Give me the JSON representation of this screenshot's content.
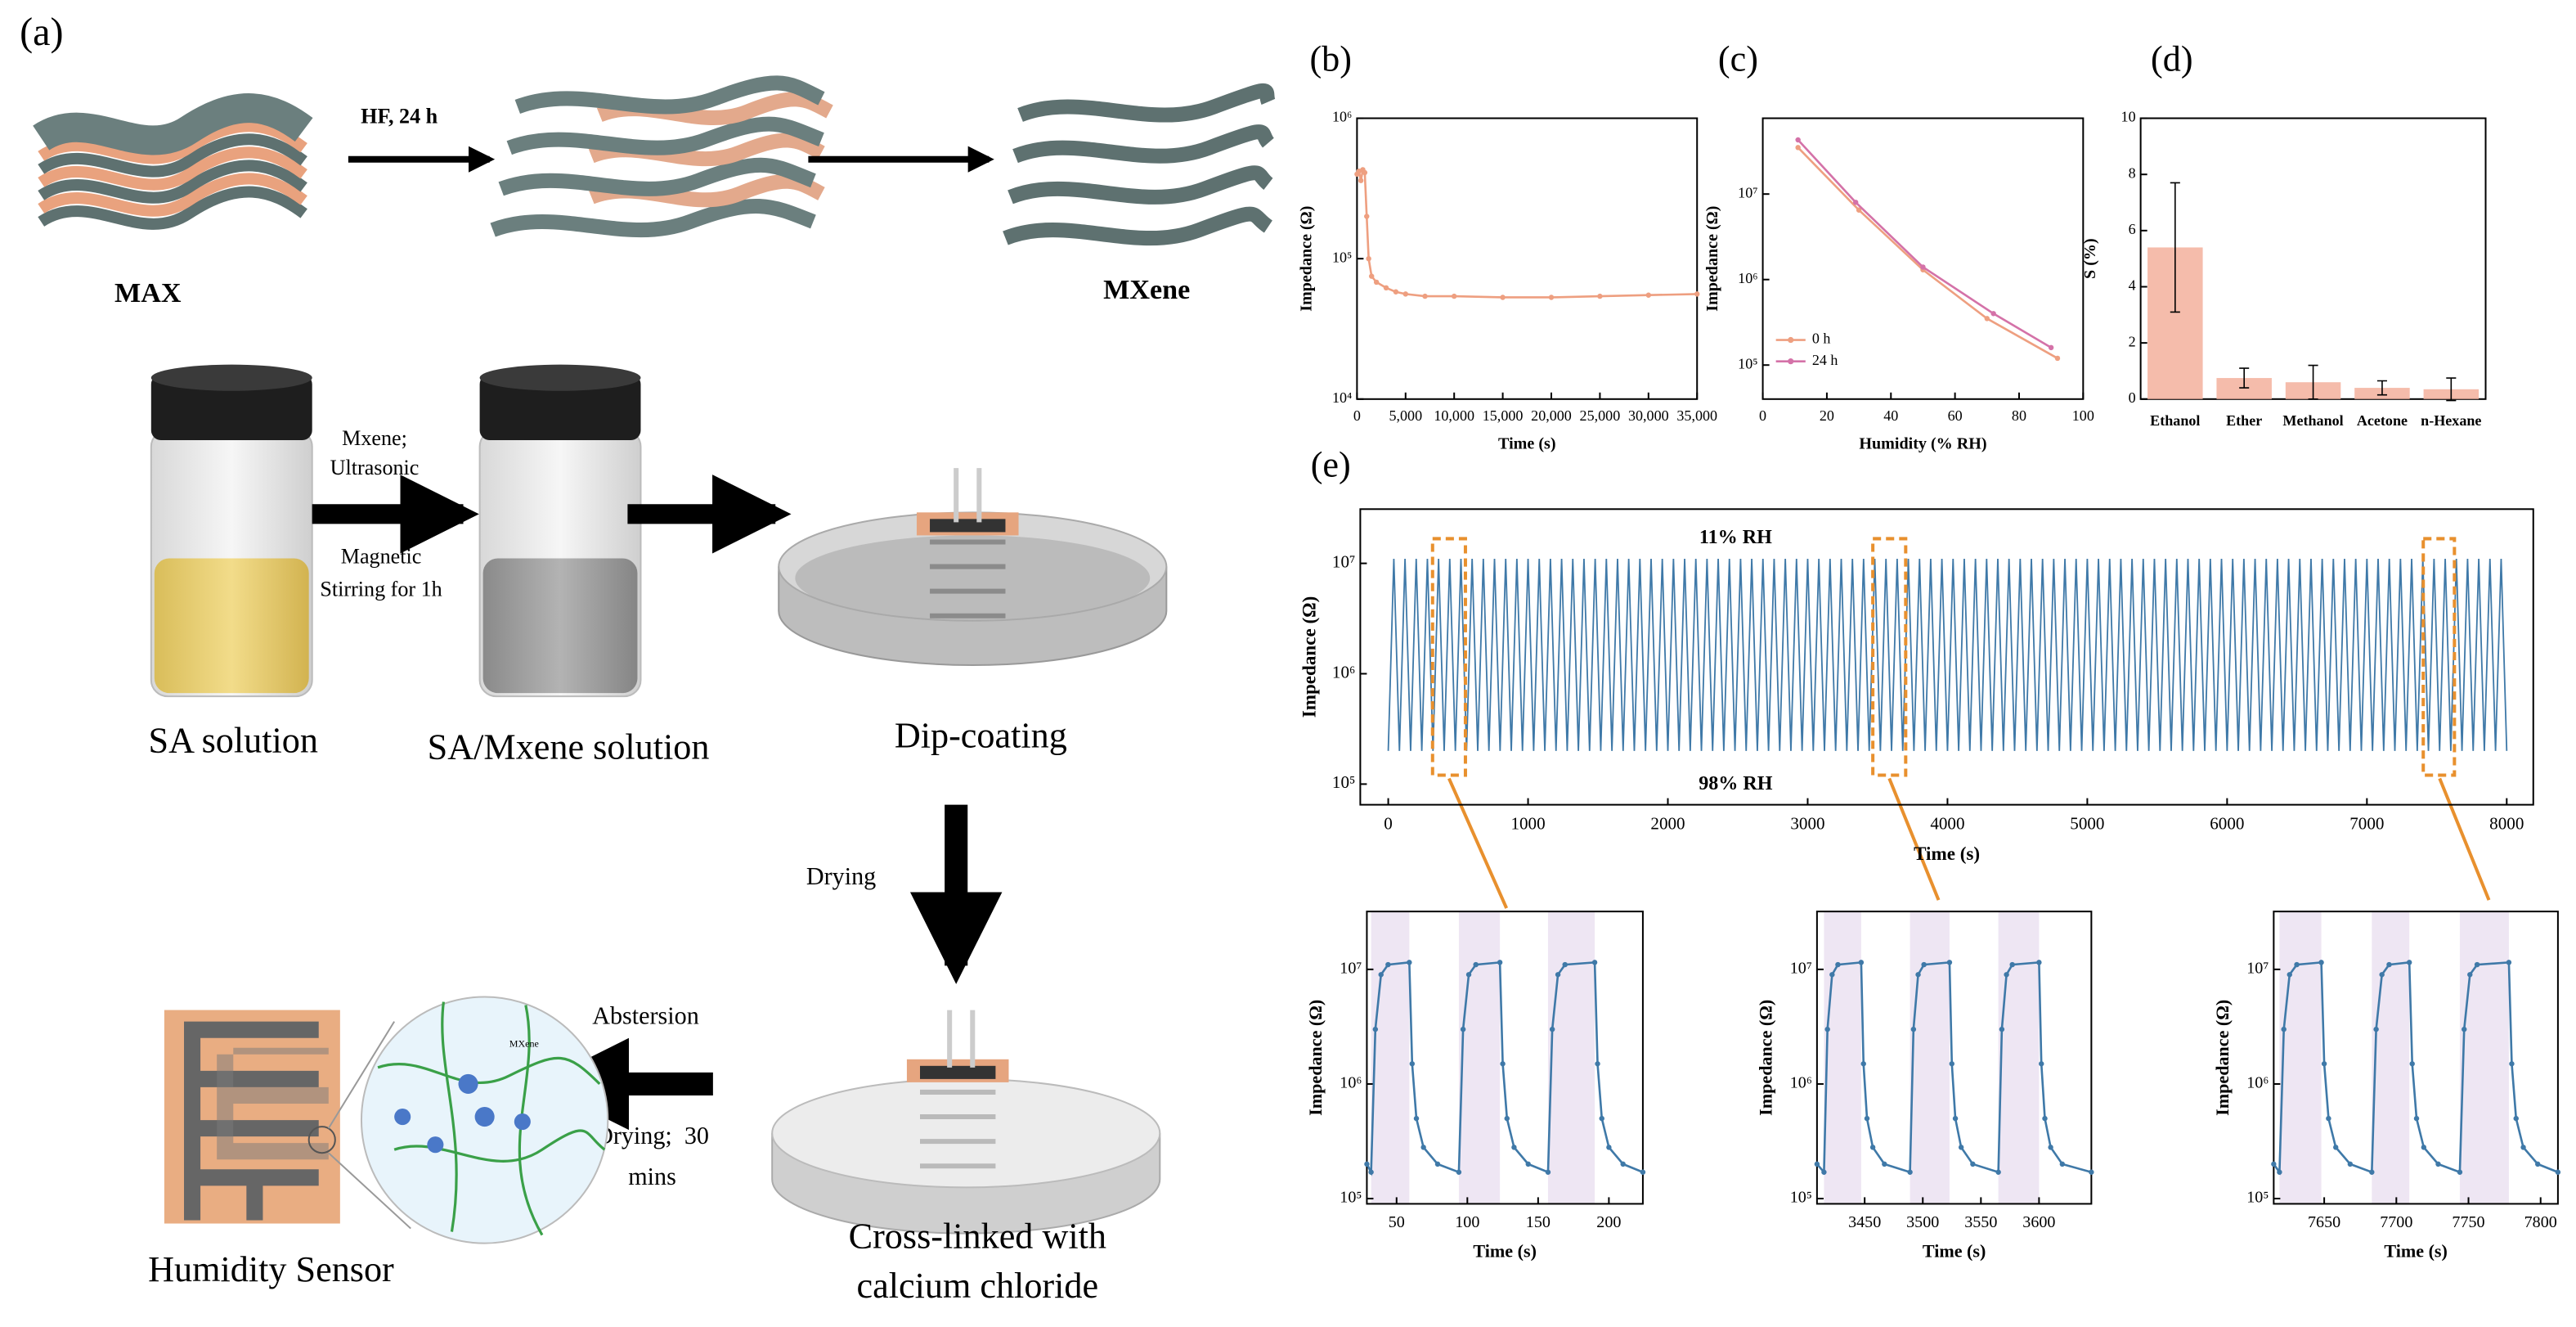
{
  "schematic": {
    "labels": [
      "(a)",
      "HF, 24 h",
      "MAX",
      "MXene",
      "Mxene;",
      "Ultrasonic",
      "Magnetic",
      "Stirring for 1h",
      "SA solution",
      "SA/Mxene solution",
      "Dip-coating",
      "Drying",
      "Cross-linked with",
      "calcium chloride",
      "Abstersion",
      "Drying;  30",
      "mins",
      "Humidity Sensor",
      "MXene"
    ]
  },
  "chart_data": [
    {
      "type": "line",
      "panel": "(b)",
      "xlabel": "Time (s)",
      "ylabel": "Impedance (Ω)",
      "log_y": true,
      "xlim": [
        0,
        35000
      ],
      "ylim": [
        10000,
        1000000
      ],
      "xticks": [
        0,
        {
          "value": 5000,
          "label": "5,000"
        },
        {
          "value": 10000,
          "label": "10,000"
        },
        {
          "value": 15000,
          "label": "15,000"
        },
        {
          "value": 20000,
          "label": "20,000"
        },
        {
          "value": 25000,
          "label": "25,000"
        },
        {
          "value": 30000,
          "label": "30,000"
        },
        {
          "value": 35000,
          "label": "35,000"
        }
      ],
      "yticks": [
        {
          "value": 10000,
          "label": "10⁴"
        },
        {
          "value": 100000,
          "label": "10⁵"
        },
        {
          "value": 1000000,
          "label": "10⁶"
        }
      ],
      "series": [
        {
          "color": "#ee9f80",
          "marker": "o",
          "x": [
            0,
            200,
            400,
            600,
            800,
            1000,
            1200,
            1500,
            2000,
            3000,
            4000,
            5000,
            7000,
            10000,
            15000,
            20000,
            25000,
            30000,
            35000
          ],
          "values": [
            400000.0,
            420000.0,
            360000.0,
            430000.0,
            410000.0,
            200000.0,
            100000.0,
            75000.0,
            68000.0,
            62000.0,
            58000.0,
            56000.0,
            54000.0,
            54000.0,
            53000.0,
            53000.0,
            54000.0,
            55000.0,
            56000.0
          ]
        }
      ]
    },
    {
      "type": "line",
      "panel": "(c)",
      "xlabel": "Humidity (% RH)",
      "ylabel": "Impedance (Ω)",
      "log_y": true,
      "legend": "lower left",
      "xlim": [
        0,
        100
      ],
      "ylim": [
        40000,
        77000000
      ],
      "xticks": [
        0,
        20,
        40,
        60,
        80,
        100
      ],
      "yticks": [
        {
          "value": 100000,
          "label": "10⁵"
        },
        {
          "value": 1000000,
          "label": "10⁶"
        },
        {
          "value": 10000000,
          "label": "10⁷"
        }
      ],
      "series": [
        {
          "name": "0 h",
          "color": "#ee9f80",
          "marker": "o",
          "x": [
            11,
            30,
            50,
            70,
            92
          ],
          "values": [
            35000000.0,
            6500000.0,
            1300000.0,
            350000.0,
            120000.0
          ]
        },
        {
          "name": "24 h",
          "color": "#d472a8",
          "marker": "o",
          "x": [
            11,
            29,
            50,
            72,
            90
          ],
          "values": [
            43000000.0,
            8000000.0,
            1400000.0,
            400000.0,
            160000.0
          ]
        }
      ]
    },
    {
      "type": "bar",
      "panel": "(d)",
      "ylabel": "S (%)",
      "ylim": [
        0,
        10
      ],
      "yticks": [
        0,
        2,
        4,
        6,
        8,
        10
      ],
      "color": "#f4b5a2",
      "categories": [
        "Ethanol",
        "Ether",
        "Methanol",
        "Acetone",
        "n-Hexane"
      ],
      "values": [
        5.4,
        0.75,
        0.6,
        0.4,
        0.35
      ],
      "errors": [
        2.3,
        0.35,
        0.6,
        0.25,
        0.4
      ]
    },
    {
      "type": "line",
      "panel": "(e)",
      "xlabel": "Time (s)",
      "ylabel": "Impedance (Ω)",
      "log_y": true,
      "annotations": [
        "11% RH",
        "98% RH"
      ],
      "highlights": [
        [
          317,
          552
        ],
        [
          3466,
          3701
        ],
        [
          7403,
          7626
        ]
      ],
      "xlim": [
        -200,
        8190
      ],
      "ylim": [
        65000,
        31000000
      ],
      "xticks": [
        0,
        1000,
        2000,
        3000,
        4000,
        5000,
        6000,
        7000,
        8000
      ],
      "yticks": [
        {
          "value": 100000,
          "label": "10⁵"
        },
        {
          "value": 1000000,
          "label": "10⁶"
        },
        {
          "value": 10000000,
          "label": "10⁷"
        }
      ],
      "series": [
        {
          "color": "#3f79a8",
          "x": [
            0,
            40,
            80,
            120,
            160,
            200,
            240,
            280,
            320,
            360,
            400,
            440,
            480,
            520,
            560,
            600,
            640,
            680,
            720,
            760,
            800,
            840,
            880,
            920,
            960,
            1000,
            1040,
            1080,
            1120,
            1160,
            1200,
            1240,
            1280,
            1320,
            1360,
            1400,
            1440,
            1480,
            1520,
            1560,
            1600,
            1640,
            1680,
            1720,
            1760,
            1800,
            1840,
            1880,
            1920,
            1960,
            2000,
            2040,
            2080,
            2120,
            2160,
            2200,
            2240,
            2280,
            2320,
            2360,
            2400,
            2440,
            2480,
            2520,
            2560,
            2600,
            2640,
            2680,
            2720,
            2760,
            2800,
            2840,
            2880,
            2920,
            2960,
            3000,
            3040,
            3080,
            3120,
            3160,
            3200,
            3240,
            3280,
            3320,
            3360,
            3400,
            3440,
            3480,
            3520,
            3560,
            3600,
            3640,
            3680,
            3720,
            3760,
            3800,
            3840,
            3880,
            3920,
            3960,
            4000,
            4040,
            4080,
            4120,
            4160,
            4200,
            4240,
            4280,
            4320,
            4360,
            4400,
            4440,
            4480,
            4520,
            4560,
            4600,
            4640,
            4680,
            4720,
            4760,
            4800,
            4840,
            4880,
            4920,
            4960,
            5000,
            5040,
            5080,
            5120,
            5160,
            5200,
            5240,
            5280,
            5320,
            5360,
            5400,
            5440,
            5480,
            5520,
            5560,
            5600,
            5640,
            5680,
            5720,
            5760,
            5800,
            5840,
            5880,
            5920,
            5960,
            6000,
            6040,
            6080,
            6120,
            6160,
            6200,
            6240,
            6280,
            6320,
            6360,
            6400,
            6440,
            6480,
            6520,
            6560,
            6600,
            6640,
            6680,
            6720,
            6760,
            6800,
            6840,
            6880,
            6920,
            6960,
            7000,
            7040,
            7080,
            7120,
            7160,
            7200,
            7240,
            7280,
            7320,
            7360,
            7400,
            7440,
            7480,
            7520,
            7560,
            7600,
            7640,
            7680,
            7720,
            7760,
            7800,
            7840,
            7880,
            7920,
            7960,
            8000
          ],
          "values": [
            200000.0,
            11000000.0,
            200000.0,
            11000000.0,
            200000.0,
            11000000.0,
            200000.0,
            11000000.0,
            200000.0,
            11000000.0,
            200000.0,
            11000000.0,
            200000.0,
            11000000.0,
            200000.0,
            11000000.0,
            200000.0,
            11000000.0,
            200000.0,
            11000000.0,
            200000.0,
            11000000.0,
            200000.0,
            11000000.0,
            200000.0,
            11000000.0,
            200000.0,
            11000000.0,
            200000.0,
            11000000.0,
            200000.0,
            11000000.0,
            200000.0,
            11000000.0,
            200000.0,
            11000000.0,
            200000.0,
            11000000.0,
            200000.0,
            11000000.0,
            200000.0,
            11000000.0,
            200000.0,
            11000000.0,
            200000.0,
            11000000.0,
            200000.0,
            11000000.0,
            200000.0,
            11000000.0,
            200000.0,
            11000000.0,
            200000.0,
            11000000.0,
            200000.0,
            11000000.0,
            200000.0,
            11000000.0,
            200000.0,
            11000000.0,
            200000.0,
            11000000.0,
            200000.0,
            11000000.0,
            200000.0,
            11000000.0,
            200000.0,
            11000000.0,
            200000.0,
            11000000.0,
            200000.0,
            11000000.0,
            200000.0,
            11000000.0,
            200000.0,
            11000000.0,
            200000.0,
            11000000.0,
            200000.0,
            11000000.0,
            200000.0,
            11000000.0,
            200000.0,
            11000000.0,
            200000.0,
            11000000.0,
            200000.0,
            11000000.0,
            200000.0,
            11000000.0,
            200000.0,
            11000000.0,
            200000.0,
            11000000.0,
            200000.0,
            11000000.0,
            200000.0,
            11000000.0,
            200000.0,
            11000000.0,
            200000.0,
            11000000.0,
            200000.0,
            11000000.0,
            200000.0,
            11000000.0,
            200000.0,
            11000000.0,
            200000.0,
            11000000.0,
            200000.0,
            11000000.0,
            200000.0,
            11000000.0,
            200000.0,
            11000000.0,
            200000.0,
            11000000.0,
            200000.0,
            11000000.0,
            200000.0,
            11000000.0,
            200000.0,
            11000000.0,
            200000.0,
            11000000.0,
            200000.0,
            11000000.0,
            200000.0,
            11000000.0,
            200000.0,
            11000000.0,
            200000.0,
            11000000.0,
            200000.0,
            11000000.0,
            200000.0,
            11000000.0,
            200000.0,
            11000000.0,
            200000.0,
            11000000.0,
            200000.0,
            11000000.0,
            200000.0,
            11000000.0,
            200000.0,
            11000000.0,
            200000.0,
            11000000.0,
            200000.0,
            11000000.0,
            200000.0,
            11000000.0,
            200000.0,
            11000000.0,
            200000.0,
            11000000.0,
            200000.0,
            11000000.0,
            200000.0,
            11000000.0,
            200000.0,
            11000000.0,
            200000.0,
            11000000.0,
            200000.0,
            11000000.0,
            200000.0,
            11000000.0,
            200000.0,
            11000000.0,
            200000.0,
            11000000.0,
            200000.0,
            11000000.0,
            200000.0,
            11000000.0,
            200000.0,
            11000000.0,
            200000.0,
            11000000.0,
            200000.0,
            11000000.0,
            200000.0,
            11000000.0,
            200000.0,
            11000000.0,
            200000.0,
            11000000.0,
            200000.0,
            11000000.0,
            200000.0,
            11000000.0,
            200000.0,
            11000000.0,
            200000.0,
            11000000.0,
            200000.0,
            11000000.0,
            200000.0
          ]
        }
      ]
    },
    {
      "type": "line",
      "xlabel": "Time (s)",
      "ylabel": "Impedance (Ω)",
      "log_y": true,
      "xlim": [
        29,
        224
      ],
      "ylim": [
        90000,
        32000000
      ],
      "xticks": [
        50,
        100,
        150,
        200
      ],
      "yticks": [
        {
          "value": 100000,
          "label": "10⁵"
        },
        {
          "value": 1000000,
          "label": "10⁶"
        },
        {
          "value": 10000000,
          "label": "10⁷"
        }
      ],
      "spans": [
        [
          32,
          59
        ],
        [
          94,
          123
        ],
        [
          157,
          190
        ]
      ],
      "series": [
        {
          "color": "#3f79a8",
          "marker": "o",
          "x": [
            29,
            32,
            35,
            39,
            44,
            59,
            61,
            64,
            69,
            79,
            94,
            97,
            101,
            106,
            123,
            125,
            128,
            133,
            143,
            157,
            160,
            164,
            169,
            190,
            192,
            195,
            200,
            210,
            224
          ],
          "values": [
            200000.0,
            170000.0,
            3000000.0,
            9000000.0,
            11000000.0,
            11500000.0,
            1500000.0,
            500000.0,
            280000.0,
            200000.0,
            170000.0,
            3000000.0,
            9000000.0,
            11000000.0,
            11500000.0,
            1500000.0,
            500000.0,
            280000.0,
            200000.0,
            170000.0,
            3000000.0,
            9000000.0,
            11000000.0,
            11500000.0,
            1500000.0,
            500000.0,
            280000.0,
            200000.0,
            170000.0
          ]
        }
      ]
    },
    {
      "type": "line",
      "xlabel": "Time (s)",
      "ylabel": "Impedance (Ω)",
      "log_y": true,
      "xlim": [
        3409,
        3645
      ],
      "ylim": [
        90000,
        32000000
      ],
      "xticks": [
        3450,
        3500,
        3550,
        3600
      ],
      "yticks": [
        {
          "value": 100000,
          "label": "10⁵"
        },
        {
          "value": 1000000,
          "label": "10⁶"
        },
        {
          "value": 10000000,
          "label": "10⁷"
        }
      ],
      "spans": [
        [
          3415,
          3447
        ],
        [
          3489,
          3523
        ],
        [
          3565,
          3600
        ]
      ],
      "series": [
        {
          "color": "#3f79a8",
          "marker": "o",
          "x": [
            3409,
            3415,
            3418,
            3422,
            3427,
            3447,
            3449,
            3452,
            3457,
            3467,
            3489,
            3492,
            3496,
            3501,
            3523,
            3525,
            3528,
            3533,
            3543,
            3565,
            3568,
            3572,
            3577,
            3600,
            3602,
            3605,
            3610,
            3620,
            3645
          ],
          "values": [
            200000.0,
            170000.0,
            3000000.0,
            9000000.0,
            11000000.0,
            11500000.0,
            1500000.0,
            500000.0,
            280000.0,
            200000.0,
            170000.0,
            3000000.0,
            9000000.0,
            11000000.0,
            11500000.0,
            1500000.0,
            500000.0,
            280000.0,
            200000.0,
            170000.0,
            3000000.0,
            9000000.0,
            11000000.0,
            11500000.0,
            1500000.0,
            500000.0,
            280000.0,
            200000.0,
            170000.0
          ]
        }
      ]
    },
    {
      "type": "line",
      "xlabel": "Time (s)",
      "ylabel": "Impedance (Ω)",
      "log_y": true,
      "xlim": [
        7615,
        7812
      ],
      "ylim": [
        90000,
        32000000
      ],
      "xticks": [
        7650,
        7700,
        7750,
        7800
      ],
      "yticks": [
        {
          "value": 100000,
          "label": "10⁵"
        },
        {
          "value": 1000000,
          "label": "10⁶"
        },
        {
          "value": 10000000,
          "label": "10⁷"
        }
      ],
      "spans": [
        [
          7619,
          7648
        ],
        [
          7683,
          7709
        ],
        [
          7744,
          7778
        ]
      ],
      "series": [
        {
          "color": "#3f79a8",
          "marker": "o",
          "x": [
            7615,
            7619,
            7622,
            7626,
            7631,
            7648,
            7650,
            7653,
            7658,
            7668,
            7683,
            7686,
            7690,
            7695,
            7709,
            7711,
            7714,
            7719,
            7729,
            7744,
            7747,
            7751,
            7756,
            7778,
            7780,
            7783,
            7788,
            7798,
            7812
          ],
          "values": [
            200000.0,
            170000.0,
            3000000.0,
            9000000.0,
            11000000.0,
            11500000.0,
            1500000.0,
            500000.0,
            280000.0,
            200000.0,
            170000.0,
            3000000.0,
            9000000.0,
            11000000.0,
            11500000.0,
            1500000.0,
            500000.0,
            280000.0,
            200000.0,
            170000.0,
            3000000.0,
            9000000.0,
            11000000.0,
            11500000.0,
            1500000.0,
            500000.0,
            280000.0,
            200000.0,
            170000.0
          ]
        }
      ]
    }
  ]
}
